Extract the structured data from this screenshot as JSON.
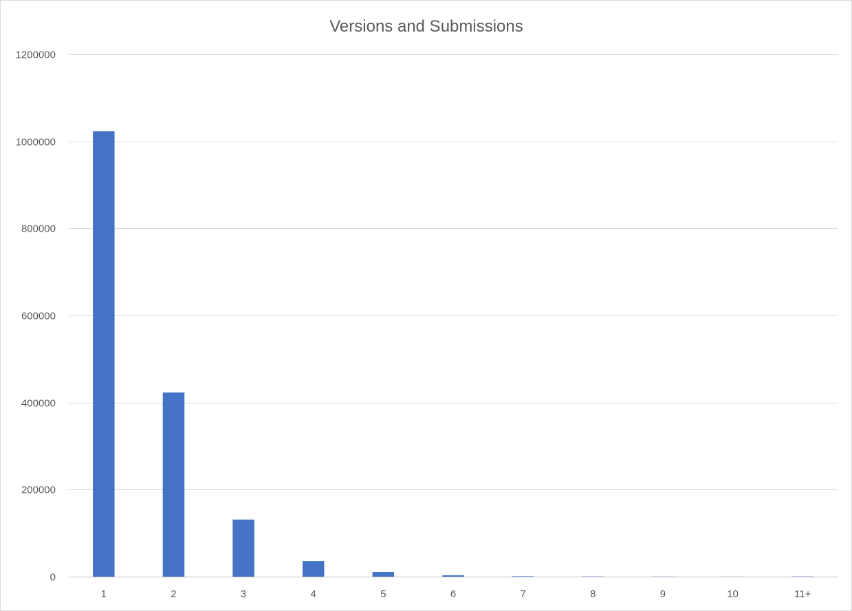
{
  "chart_data": {
    "type": "bar",
    "title": "Versions and Submissions",
    "xlabel": "",
    "ylabel": "",
    "categories": [
      "1",
      "2",
      "3",
      "4",
      "5",
      "6",
      "7",
      "8",
      "9",
      "10",
      "11+"
    ],
    "values": [
      1023000,
      423000,
      131000,
      36000,
      11000,
      3000,
      1000,
      500,
      300,
      200,
      500
    ],
    "ylim": [
      0,
      1200000
    ],
    "yticks": [
      "0",
      "200000",
      "400000",
      "600000",
      "800000",
      "1000000",
      "1200000"
    ],
    "grid": true,
    "legend": "none",
    "bar_color": "#4472C4"
  }
}
